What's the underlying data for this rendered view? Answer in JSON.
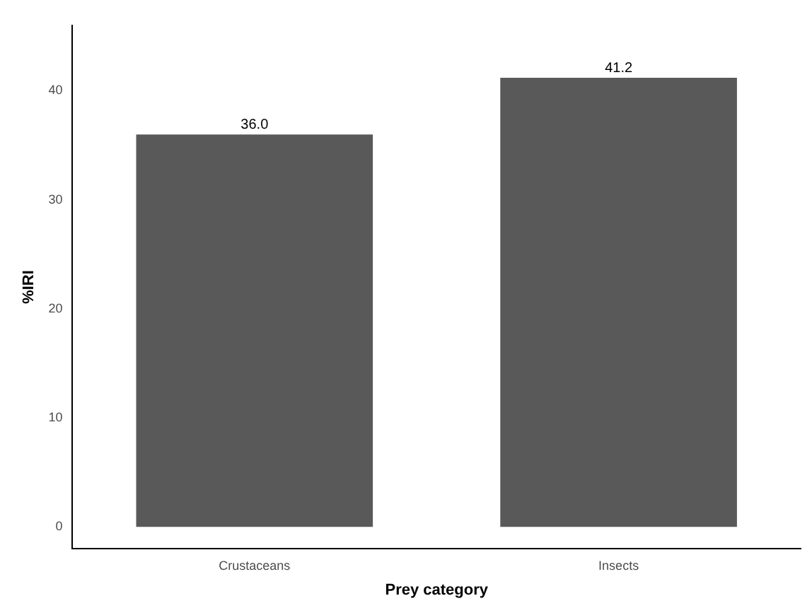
{
  "chart_data": {
    "type": "bar",
    "xlabel": "Prey category",
    "ylabel": "%IRI",
    "categories": [
      "Crustaceans",
      "Insects"
    ],
    "values": [
      36.0,
      41.2
    ],
    "value_labels": [
      "36.0",
      "41.2"
    ],
    "color": "#595959",
    "ylim": [
      -2,
      46
    ],
    "yticks": [
      0,
      10,
      20,
      30,
      40
    ],
    "grid": false
  }
}
